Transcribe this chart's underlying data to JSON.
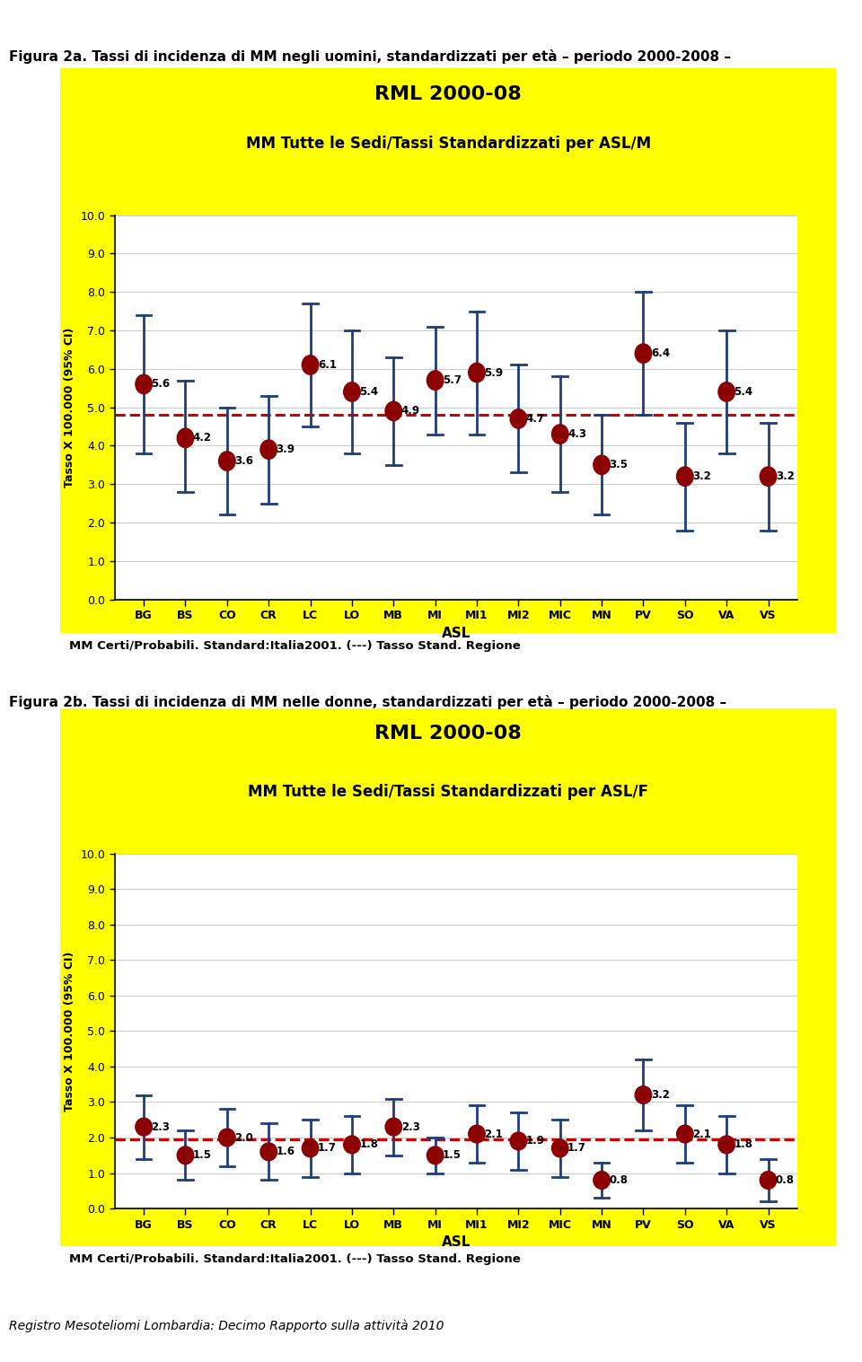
{
  "fig1": {
    "title_line1": "RML 2000-08",
    "title_line2": "MM Tutte le Sedi/Tassi Standardizzati per ASL/M",
    "ylabel": "Tasso X 100.000 (95% CI)",
    "xlabel": "ASL",
    "caption": "MM Certi/Probabili. Standard:Italia2001. (---) Tasso Stand. Regione",
    "heading": "Figura 2a. Tassi di incidenza di MM negli uomini, standardizzati per età – periodo 2000-2008 –",
    "ylim": [
      0.0,
      10.0
    ],
    "yticks": [
      0.0,
      1.0,
      2.0,
      3.0,
      4.0,
      5.0,
      6.0,
      7.0,
      8.0,
      9.0,
      10.0
    ],
    "ytick_labels": [
      "0.0",
      "1.0",
      "2.0",
      "3.0",
      "4.0",
      "5.0",
      "6.0",
      "7.0",
      "8.0",
      "9.0",
      "10.0"
    ],
    "reference_line": 4.8,
    "categories": [
      "BG",
      "BS",
      "CO",
      "CR",
      "LC",
      "LO",
      "MB",
      "MI",
      "MI1",
      "MI2",
      "MIC",
      "MN",
      "PV",
      "SO",
      "VA",
      "VS"
    ],
    "values": [
      5.6,
      4.2,
      3.6,
      3.9,
      6.1,
      5.4,
      4.9,
      5.7,
      5.9,
      4.7,
      4.3,
      3.5,
      6.4,
      3.2,
      5.4,
      3.2
    ],
    "ci_low": [
      3.8,
      2.8,
      2.2,
      2.5,
      4.5,
      3.8,
      3.5,
      4.3,
      4.3,
      3.3,
      2.8,
      2.2,
      4.8,
      1.8,
      3.8,
      1.8
    ],
    "ci_high": [
      7.4,
      5.7,
      5.0,
      5.3,
      7.7,
      7.0,
      6.3,
      7.1,
      7.5,
      6.1,
      5.8,
      4.8,
      8.0,
      4.6,
      7.0,
      4.6
    ]
  },
  "fig2": {
    "title_line1": "RML 2000-08",
    "title_line2": "MM Tutte le Sedi/Tassi Standardizzati per ASL/F",
    "ylabel": "Tasso X 100.000 (95% CI)",
    "xlabel": "ASL",
    "caption": "MM Certi/Probabili. Standard:Italia2001. (---) Tasso Stand. Regione",
    "heading": "Figura 2b. Tassi di incidenza di MM nelle donne, standardizzati per età – periodo 2000-2008 –",
    "ylim": [
      0.0,
      10.0
    ],
    "yticks": [
      0.0,
      1.0,
      2.0,
      3.0,
      4.0,
      5.0,
      6.0,
      7.0,
      8.0,
      9.0,
      10.0
    ],
    "ytick_labels": [
      "0.0",
      "1.0",
      "2.0",
      "3.0",
      "4.0",
      "5.0",
      "6.0",
      "7.0",
      "8.0",
      "9.0",
      "10.0"
    ],
    "reference_line": 1.95,
    "categories": [
      "BG",
      "BS",
      "CO",
      "CR",
      "LC",
      "LO",
      "MB",
      "MI",
      "MI1",
      "MI2",
      "MIC",
      "MN",
      "PV",
      "SO",
      "VA",
      "VS"
    ],
    "values": [
      2.3,
      1.5,
      2.0,
      1.6,
      1.7,
      1.8,
      2.3,
      1.5,
      2.1,
      1.9,
      1.7,
      0.8,
      3.2,
      2.1,
      1.8,
      0.8
    ],
    "ci_low": [
      1.4,
      0.8,
      1.2,
      0.8,
      0.9,
      1.0,
      1.5,
      1.0,
      1.3,
      1.1,
      0.9,
      0.3,
      2.2,
      1.3,
      1.0,
      0.2
    ],
    "ci_high": [
      3.2,
      2.2,
      2.8,
      2.4,
      2.5,
      2.6,
      3.1,
      2.0,
      2.9,
      2.7,
      2.5,
      1.3,
      4.2,
      2.9,
      2.6,
      1.4
    ]
  },
  "colors": {
    "background": "#FFFF00",
    "plot_bg": "#FFFFFF",
    "dot_color": "#8B0000",
    "ci_color": "#1F3D7A",
    "ref_line_color": "#CC0000",
    "heading_color": "#000000",
    "title_color": "#000000"
  },
  "footer": "Registro Mesoteliomi Lombardia: Decimo Rapporto sulla attività 2010"
}
